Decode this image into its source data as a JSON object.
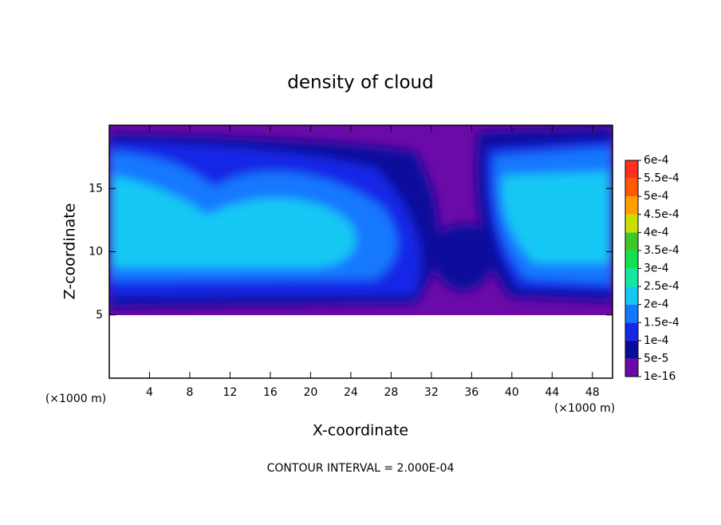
{
  "chart_data": {
    "type": "contour",
    "title": "density of cloud",
    "x_label": "X-coordinate",
    "y_label": "Z-coordinate",
    "x_unit_left": "(×1000 m)",
    "x_unit_right": "(×1000 m)",
    "footnote": "CONTOUR INTERVAL = 2.000E-04",
    "xlim": [
      0,
      50
    ],
    "xticks": [
      4,
      8,
      12,
      16,
      20,
      24,
      28,
      32,
      36,
      40,
      44,
      48
    ],
    "ylim": [
      0,
      20
    ],
    "yticks": [
      5,
      10,
      15
    ],
    "colorbar": {
      "levels": [
        {
          "value": 1e-16,
          "label": "1e-16"
        },
        {
          "value": 5e-05,
          "label": "5e-5"
        },
        {
          "value": 0.0001,
          "label": "1e-4"
        },
        {
          "value": 0.00015,
          "label": "1.5e-4"
        },
        {
          "value": 0.0002,
          "label": "2e-4"
        },
        {
          "value": 0.00025,
          "label": "2.5e-4"
        },
        {
          "value": 0.0003,
          "label": "3e-4"
        },
        {
          "value": 0.00035,
          "label": "3.5e-4"
        },
        {
          "value": 0.0004,
          "label": "4e-4"
        },
        {
          "value": 0.00045,
          "label": "4.5e-4"
        },
        {
          "value": 0.0005,
          "label": "5e-4"
        },
        {
          "value": 0.00055,
          "label": "5.5e-4"
        },
        {
          "value": 0.0006,
          "label": "6e-4"
        }
      ],
      "colors": [
        "#6a0aa8",
        "#0a0a9c",
        "#1428e6",
        "#1478ff",
        "#14c8f4",
        "#14e8a0",
        "#14e050",
        "#3cc828",
        "#c8e000",
        "#ffa000",
        "#ff5a00",
        "#ff3020"
      ]
    }
  }
}
